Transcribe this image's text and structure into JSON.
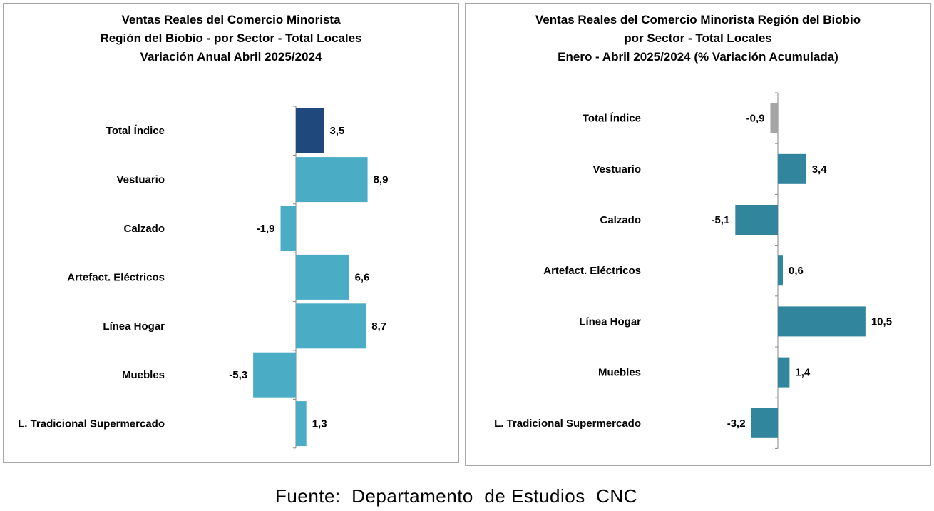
{
  "chart_data": [
    {
      "type": "bar",
      "orientation": "horizontal",
      "title_lines": [
        "Ventas Reales del Comercio Minorista",
        "Región del Biobio - por Sector - Total Locales",
        "Variación Anual  Abril 2025/2024"
      ],
      "categories": [
        "Total Índice",
        "Vestuario",
        "Calzado",
        "Artefact. Eléctricos",
        "Línea Hogar",
        "Muebles",
        "L. Tradicional Supermercado"
      ],
      "values": [
        3.5,
        8.9,
        -1.9,
        6.6,
        8.7,
        -5.3,
        1.3
      ],
      "value_labels": [
        "3,5",
        "8,9",
        "-1,9",
        "6,6",
        "8,7",
        "-5,3",
        "1,3"
      ],
      "bar_colors": [
        "#1f497d",
        "#4bacc6",
        "#4bacc6",
        "#4bacc6",
        "#4bacc6",
        "#4bacc6",
        "#4bacc6"
      ],
      "xlim": [
        -5.3,
        8.9
      ],
      "grid": false,
      "legend": "none"
    },
    {
      "type": "bar",
      "orientation": "horizontal",
      "title_lines": [
        "Ventas Reales del Comercio Minorista Región del Biobio",
        "por Sector - Total Locales",
        "Enero  - Abril 2025/2024  (% Variación Acumulada)"
      ],
      "categories": [
        "Total Índice",
        "Vestuario",
        "Calzado",
        "Artefact. Eléctricos",
        "Línea Hogar",
        "Muebles",
        "L. Tradicional Supermercado"
      ],
      "values": [
        -0.9,
        3.4,
        -5.1,
        0.6,
        10.5,
        1.4,
        -3.2
      ],
      "value_labels": [
        "-0,9",
        "3,4",
        "-5,1",
        "0,6",
        "10,5",
        "1,4",
        "-3,2"
      ],
      "bar_colors": [
        "#a5a5a5",
        "#31859c",
        "#31859c",
        "#31859c",
        "#31859c",
        "#31859c",
        "#31859c"
      ],
      "xlim": [
        -5.1,
        10.5
      ],
      "grid": false,
      "legend": "none"
    }
  ],
  "source": "Fuente:  Departamento  de Estudios  CNC"
}
